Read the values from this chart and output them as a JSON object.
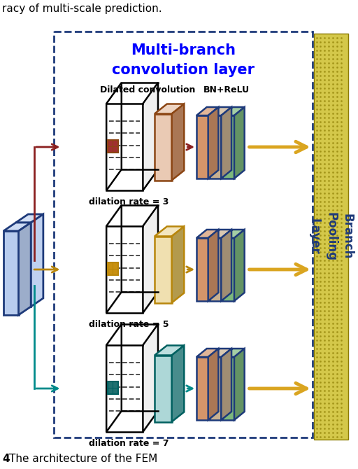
{
  "title_line1": "Multi-branch",
  "title_line2": "convolution layer",
  "title_color": "#0000FF",
  "label_dilated": "Dilated convolution",
  "label_bn": "BN+ReLU",
  "dilation_labels": [
    "dilation rate = 3",
    "dilation rate = 5",
    "dilation rate = 7"
  ],
  "branch_label": "Branch\nPooling\nLayer",
  "arrow_colors_in": [
    "#8B2020",
    "#B8860B",
    "#008B8B"
  ],
  "arrow_color_out": "#DAA520",
  "bg_color": "#FFFFFF",
  "border_color": "#1E3A7A",
  "input_face_color": "#B8CCEE",
  "input_edge_color": "#1E3A7A",
  "kernel_colors": [
    "#A03030",
    "#C89010",
    "#207070"
  ],
  "conv_slab_colors": [
    "#D4956A",
    "#E0C060",
    "#5AAFAF"
  ],
  "conv_slab_edges": [
    "#8B4513",
    "#B8860B",
    "#006060"
  ],
  "bn_color1": "#D4956A",
  "bn_color2": "#7DB87D",
  "bn_edge": "#1E3A7A",
  "yellow_strip_color": "#D4C84A",
  "yellow_strip_edge": "#8B7B00",
  "caption_text": "The architecture of the FEM",
  "top_text": "racy of multi-scale prediction.",
  "figsize": [
    5.12,
    6.7
  ],
  "dpi": 100
}
